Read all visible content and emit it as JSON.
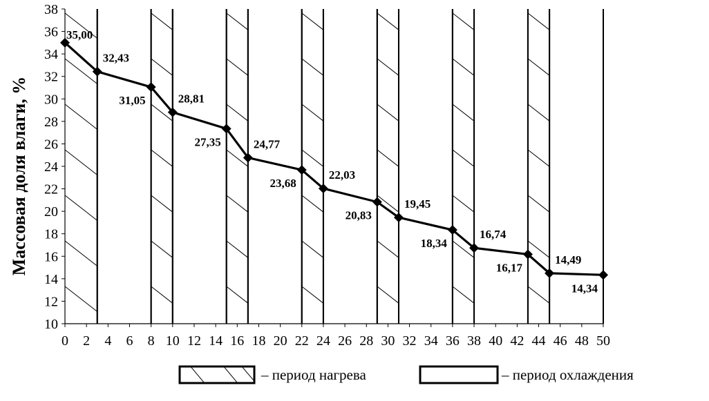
{
  "chart_data": {
    "type": "line",
    "title": "",
    "xlabel": "",
    "ylabel": "Массовая доля влаги,  %",
    "xlim": [
      0,
      50
    ],
    "ylim": [
      10,
      38
    ],
    "x_ticks": [
      0,
      2,
      4,
      6,
      8,
      10,
      12,
      14,
      16,
      18,
      20,
      22,
      24,
      26,
      28,
      30,
      32,
      34,
      36,
      38,
      40,
      42,
      44,
      46,
      48,
      50
    ],
    "y_ticks": [
      10,
      12,
      14,
      16,
      18,
      20,
      22,
      24,
      26,
      28,
      30,
      32,
      34,
      36,
      38
    ],
    "grid": false,
    "series": [
      {
        "x": [
          0,
          3,
          8,
          10,
          15,
          17,
          22,
          24,
          29,
          31,
          36,
          38,
          43,
          45,
          50
        ],
        "y": [
          35.0,
          32.43,
          31.05,
          28.81,
          27.35,
          24.77,
          23.68,
          22.03,
          20.83,
          19.45,
          18.34,
          16.74,
          16.17,
          14.49,
          14.34
        ],
        "labels": [
          "35,00",
          "32,43",
          "31,05",
          "28,81",
          "27,35",
          "24,77",
          "23,68",
          "22,03",
          "20,83",
          "19,45",
          "18,34",
          "16,74",
          "16,17",
          "14,49",
          "14,34"
        ],
        "color": "#000000",
        "marker": "diamond"
      }
    ],
    "periods": [
      {
        "kind": "heating",
        "from": 0,
        "to": 3
      },
      {
        "kind": "cooling",
        "from": 3,
        "to": 8
      },
      {
        "kind": "heating",
        "from": 8,
        "to": 10
      },
      {
        "kind": "cooling",
        "from": 10,
        "to": 15
      },
      {
        "kind": "heating",
        "from": 15,
        "to": 17
      },
      {
        "kind": "cooling",
        "from": 17,
        "to": 22
      },
      {
        "kind": "heating",
        "from": 22,
        "to": 24
      },
      {
        "kind": "cooling",
        "from": 24,
        "to": 29
      },
      {
        "kind": "heating",
        "from": 29,
        "to": 31
      },
      {
        "kind": "cooling",
        "from": 31,
        "to": 36
      },
      {
        "kind": "heating",
        "from": 36,
        "to": 38
      },
      {
        "kind": "cooling",
        "from": 38,
        "to": 43
      },
      {
        "kind": "heating",
        "from": 43,
        "to": 45
      },
      {
        "kind": "cooling",
        "from": 45,
        "to": 50
      }
    ],
    "legend": {
      "placement": "bottom",
      "items": [
        {
          "pattern": "hatched",
          "label": "– период нагрева"
        },
        {
          "pattern": "plain",
          "label": "– период охлаждения"
        }
      ]
    }
  }
}
